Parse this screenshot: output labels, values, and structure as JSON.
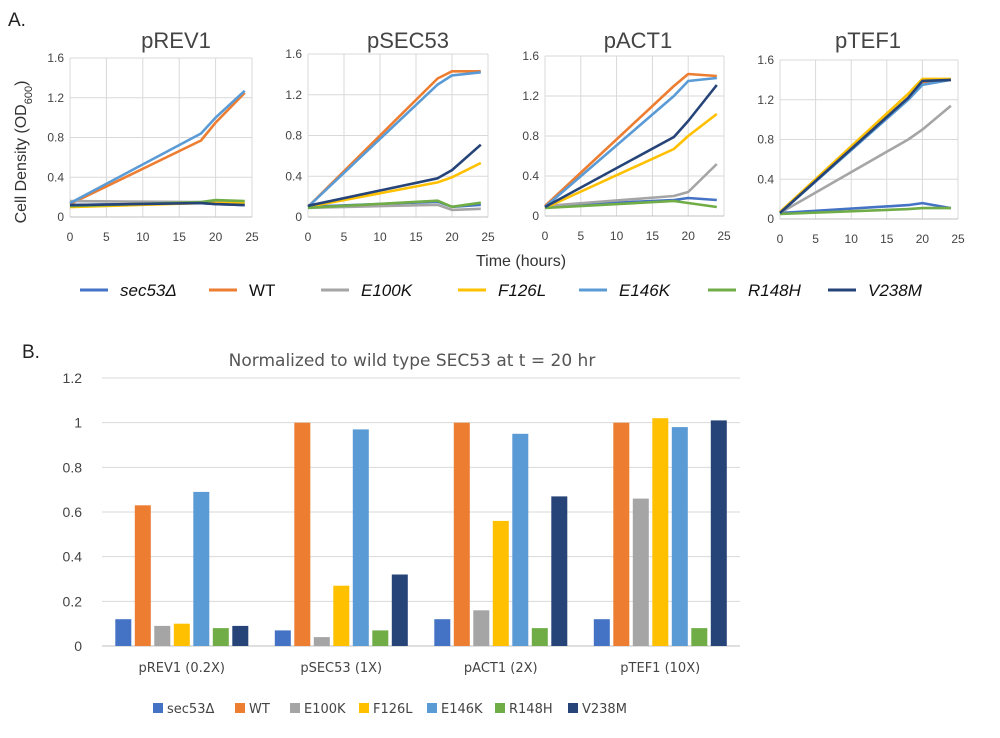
{
  "panel_a_label": "A.",
  "panel_b_label": "B.",
  "series_colors": {
    "sec53Δ": "#4472C4",
    "WT": "#ED7D31",
    "E100K": "#A5A5A5",
    "F126L": "#FFC000",
    "E146K": "#5B9BD5",
    "R148H": "#70AD47",
    "V238M": "#264478"
  },
  "legend_a": [
    {
      "name": "sec53Δ",
      "italic": true
    },
    {
      "name": "WT",
      "italic": false
    },
    {
      "name": "E100K",
      "italic": true
    },
    {
      "name": "F126L",
      "italic": true
    },
    {
      "name": "E146K",
      "italic": true
    },
    {
      "name": "R148H",
      "italic": true
    },
    {
      "name": "V238M",
      "italic": true
    }
  ],
  "legend_b": [
    "sec53Δ",
    "WT",
    "E100K",
    "F126L",
    "E146K",
    "R148H",
    "V238M"
  ],
  "chart_data": [
    {
      "type": "line",
      "title": "pREV1",
      "ylabel": "Cell Density (OD600)",
      "xlabel": "Time (hours)",
      "xlim": [
        0,
        25
      ],
      "ylim": [
        0,
        1.6
      ],
      "xticks": [
        "0",
        "5",
        "10",
        "15",
        "20",
        "25"
      ],
      "yticks": [
        "0",
        "0.4",
        "0.8",
        "1.2",
        "1.6"
      ],
      "x": [
        0,
        18,
        20,
        24
      ],
      "series": [
        {
          "name": "sec53Δ",
          "values": [
            0.12,
            0.14,
            0.13,
            0.12
          ]
        },
        {
          "name": "WT",
          "values": [
            0.13,
            0.77,
            0.95,
            1.25
          ]
        },
        {
          "name": "E100K",
          "values": [
            0.16,
            0.15,
            0.15,
            0.14
          ]
        },
        {
          "name": "F126L",
          "values": [
            0.1,
            0.14,
            0.14,
            0.14
          ]
        },
        {
          "name": "E146K",
          "values": [
            0.14,
            0.84,
            1.0,
            1.27
          ]
        },
        {
          "name": "R148H",
          "values": [
            0.11,
            0.15,
            0.17,
            0.16
          ]
        },
        {
          "name": "V238M",
          "values": [
            0.12,
            0.14,
            0.13,
            0.12
          ]
        }
      ]
    },
    {
      "type": "line",
      "title": "pSEC53",
      "xlim": [
        0,
        25
      ],
      "ylim": [
        0,
        1.6
      ],
      "xticks": [
        "0",
        "5",
        "10",
        "15",
        "20",
        "25"
      ],
      "yticks": [
        "0",
        "0.4",
        "0.8",
        "1.2",
        "1.6"
      ],
      "x": [
        0,
        18,
        20,
        24
      ],
      "series": [
        {
          "name": "sec53Δ",
          "values": [
            0.1,
            0.15,
            0.1,
            0.12
          ]
        },
        {
          "name": "WT",
          "values": [
            0.1,
            1.36,
            1.43,
            1.43
          ]
        },
        {
          "name": "E100K",
          "values": [
            0.09,
            0.12,
            0.07,
            0.08
          ]
        },
        {
          "name": "F126L",
          "values": [
            0.1,
            0.34,
            0.39,
            0.53
          ]
        },
        {
          "name": "E146K",
          "values": [
            0.1,
            1.3,
            1.39,
            1.42
          ]
        },
        {
          "name": "R148H",
          "values": [
            0.09,
            0.16,
            0.1,
            0.14
          ]
        },
        {
          "name": "V238M",
          "values": [
            0.11,
            0.38,
            0.46,
            0.71
          ]
        }
      ]
    },
    {
      "type": "line",
      "title": "pACT1",
      "xlim": [
        0,
        25
      ],
      "ylim": [
        0,
        1.6
      ],
      "xticks": [
        "0",
        "5",
        "10",
        "15",
        "20",
        "25"
      ],
      "yticks": [
        "0",
        "0.4",
        "0.8",
        "1.2",
        "1.6"
      ],
      "x": [
        0,
        18,
        20,
        24
      ],
      "series": [
        {
          "name": "sec53Δ",
          "values": [
            0.1,
            0.16,
            0.18,
            0.16
          ]
        },
        {
          "name": "WT",
          "values": [
            0.1,
            1.3,
            1.42,
            1.4
          ]
        },
        {
          "name": "E100K",
          "values": [
            0.1,
            0.2,
            0.24,
            0.52
          ]
        },
        {
          "name": "F126L",
          "values": [
            0.08,
            0.67,
            0.8,
            1.02
          ]
        },
        {
          "name": "E146K",
          "values": [
            0.09,
            1.2,
            1.35,
            1.38
          ]
        },
        {
          "name": "R148H",
          "values": [
            0.08,
            0.15,
            0.13,
            0.09
          ]
        },
        {
          "name": "V238M",
          "values": [
            0.09,
            0.79,
            0.95,
            1.31
          ]
        }
      ]
    },
    {
      "type": "line",
      "title": "pTEF1",
      "xlim": [
        0,
        25
      ],
      "ylim": [
        0,
        1.6
      ],
      "xticks": [
        "0",
        "5",
        "10",
        "15",
        "20",
        "25"
      ],
      "yticks": [
        "0",
        "0.4",
        "0.8",
        "1.2",
        "1.6"
      ],
      "x": [
        0,
        18,
        20,
        24
      ],
      "series": [
        {
          "name": "sec53Δ",
          "values": [
            0.06,
            0.14,
            0.16,
            0.11
          ]
        },
        {
          "name": "WT",
          "values": [
            0.07,
            1.22,
            1.38,
            1.4
          ]
        },
        {
          "name": "E100K",
          "values": [
            0.06,
            0.8,
            0.9,
            1.14
          ]
        },
        {
          "name": "F126L",
          "values": [
            0.07,
            1.26,
            1.41,
            1.41
          ]
        },
        {
          "name": "E146K",
          "values": [
            0.06,
            1.2,
            1.35,
            1.4
          ]
        },
        {
          "name": "R148H",
          "values": [
            0.05,
            0.1,
            0.11,
            0.11
          ]
        },
        {
          "name": "V238M",
          "values": [
            0.06,
            1.22,
            1.39,
            1.4
          ]
        }
      ]
    },
    {
      "type": "bar",
      "title": "Normalized to wild type SEC53 at t = 20 hr",
      "categories": [
        "pREV1 (0.2X)",
        "pSEC53 (1X)",
        "pACT1 (2X)",
        "pTEF1 (10X)"
      ],
      "ylim": [
        0,
        1.2
      ],
      "yticks": [
        "0",
        "0.2",
        "0.4",
        "0.6",
        "0.8",
        "1",
        "1.2"
      ],
      "grid": true,
      "legend": "bottom",
      "series": [
        {
          "name": "sec53Δ",
          "values": [
            0.12,
            0.07,
            0.12,
            0.12
          ]
        },
        {
          "name": "WT",
          "values": [
            0.63,
            1.0,
            1.0,
            1.0
          ]
        },
        {
          "name": "E100K",
          "values": [
            0.09,
            0.04,
            0.16,
            0.66
          ]
        },
        {
          "name": "F126L",
          "values": [
            0.1,
            0.27,
            0.56,
            1.02
          ]
        },
        {
          "name": "E146K",
          "values": [
            0.69,
            0.97,
            0.95,
            0.98
          ]
        },
        {
          "name": "R148H",
          "values": [
            0.08,
            0.07,
            0.08,
            0.08
          ]
        },
        {
          "name": "V238M",
          "values": [
            0.09,
            0.32,
            0.67,
            1.01
          ]
        }
      ]
    }
  ]
}
